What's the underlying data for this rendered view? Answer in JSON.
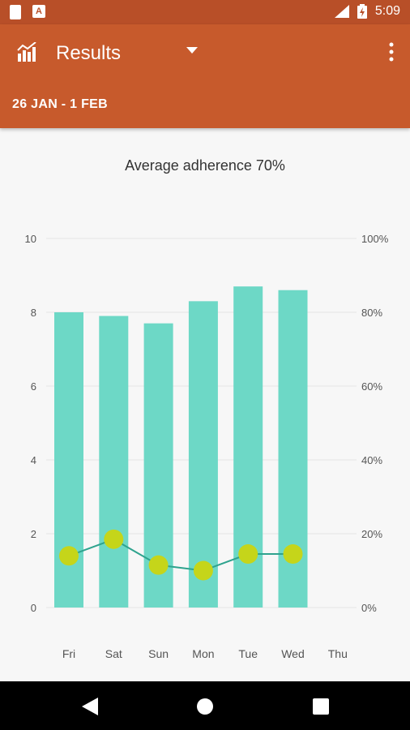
{
  "status_bar": {
    "time": "5:09",
    "notif_letter": "A"
  },
  "toolbar": {
    "title": "Results",
    "date_range": "26 JAN - 1 FEB",
    "icons": [
      "bar-chart-icon",
      "dropdown-arrow-icon",
      "overflow-menu-icon"
    ]
  },
  "chart_data": {
    "type": "bar",
    "title": "Average adherence 70%",
    "categories": [
      "Fri",
      "Sat",
      "Sun",
      "Mon",
      "Tue",
      "Wed",
      "Thu"
    ],
    "series": [
      {
        "axis": "left",
        "values": [
          8.0,
          7.9,
          7.7,
          8.3,
          8.7,
          8.6,
          null
        ],
        "color": "#6dd8c6"
      },
      {
        "axis": "right",
        "type": "line",
        "values": [
          14,
          18.5,
          11.5,
          10,
          14.5,
          14.5,
          null
        ],
        "color": "#2fa38e",
        "marker_color": "#c5d51a"
      }
    ],
    "left_axis": {
      "ticks": [
        "0",
        "2",
        "4",
        "6",
        "8",
        "10"
      ],
      "ylim": [
        0,
        10
      ]
    },
    "right_axis": {
      "ticks": [
        "0%",
        "20%",
        "40%",
        "60%",
        "80%",
        "100%"
      ],
      "ylim": [
        0,
        100
      ]
    },
    "grid": true
  },
  "nav_bar": {
    "buttons": [
      "back-icon",
      "home-icon",
      "recents-icon"
    ]
  }
}
